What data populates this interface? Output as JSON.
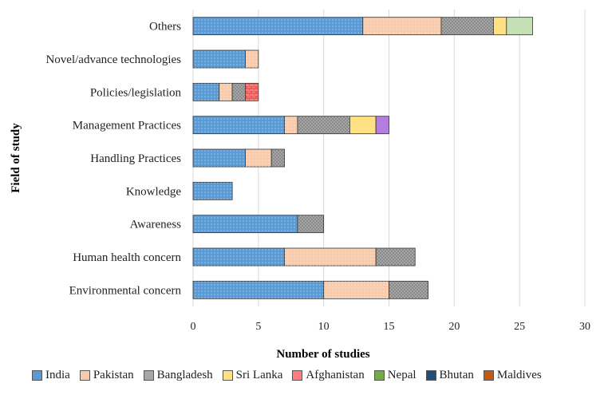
{
  "chart_data": {
    "type": "bar",
    "orientation": "horizontal",
    "stacked": true,
    "title": "",
    "xlabel": "Number of studies",
    "ylabel": "Field of study",
    "xlim": [
      0,
      30
    ],
    "xticks": [
      "0",
      "5",
      "10",
      "15",
      "20",
      "25",
      "30"
    ],
    "grid": true,
    "legend_position": "bottom",
    "categories": [
      "Others",
      "Novel/advance technologies",
      "Policies/legislation",
      "Management Practices",
      "Handling Practices",
      "Knowledge",
      "Awareness",
      "Human health concern",
      "Environmental concern"
    ],
    "series": [
      {
        "name": "India",
        "color": "#5b9bd5",
        "values": [
          13,
          4,
          2,
          7,
          4,
          3,
          8,
          7,
          10
        ]
      },
      {
        "name": "Pakistan",
        "color": "#f8cbad",
        "values": [
          6,
          1,
          1,
          1,
          2,
          0,
          0,
          7,
          5
        ]
      },
      {
        "name": "Bangladesh",
        "color": "#a6a6a6",
        "values": [
          4,
          0,
          1,
          4,
          1,
          0,
          2,
          3,
          3
        ]
      },
      {
        "name": "Sri Lanka",
        "color": "#ffe083",
        "values": [
          1,
          0,
          0,
          2,
          0,
          0,
          0,
          0,
          0
        ]
      },
      {
        "name": "Afghanistan",
        "color": "#ff7c80",
        "values": [
          0,
          0,
          1,
          0,
          0,
          0,
          0,
          0,
          0
        ]
      },
      {
        "name": "Nepal",
        "color": "#70ad47",
        "values": [
          2,
          0,
          0,
          0,
          0,
          0,
          0,
          0,
          0
        ]
      },
      {
        "name": "Bhutan",
        "color": "#1f4e79",
        "values": [
          0,
          0,
          0,
          0,
          0,
          0,
          0,
          0,
          0
        ]
      },
      {
        "name": "Maldives",
        "color": "#c55a11",
        "values": [
          0,
          0,
          0,
          0,
          0,
          0,
          0,
          0,
          0
        ]
      }
    ],
    "extra_series_colors": {
      "Nepal_drawn": "#c5e0b4",
      "Purple": "#b37ede"
    },
    "purple_segment": {
      "category": "Management Practices",
      "value": 1
    }
  }
}
